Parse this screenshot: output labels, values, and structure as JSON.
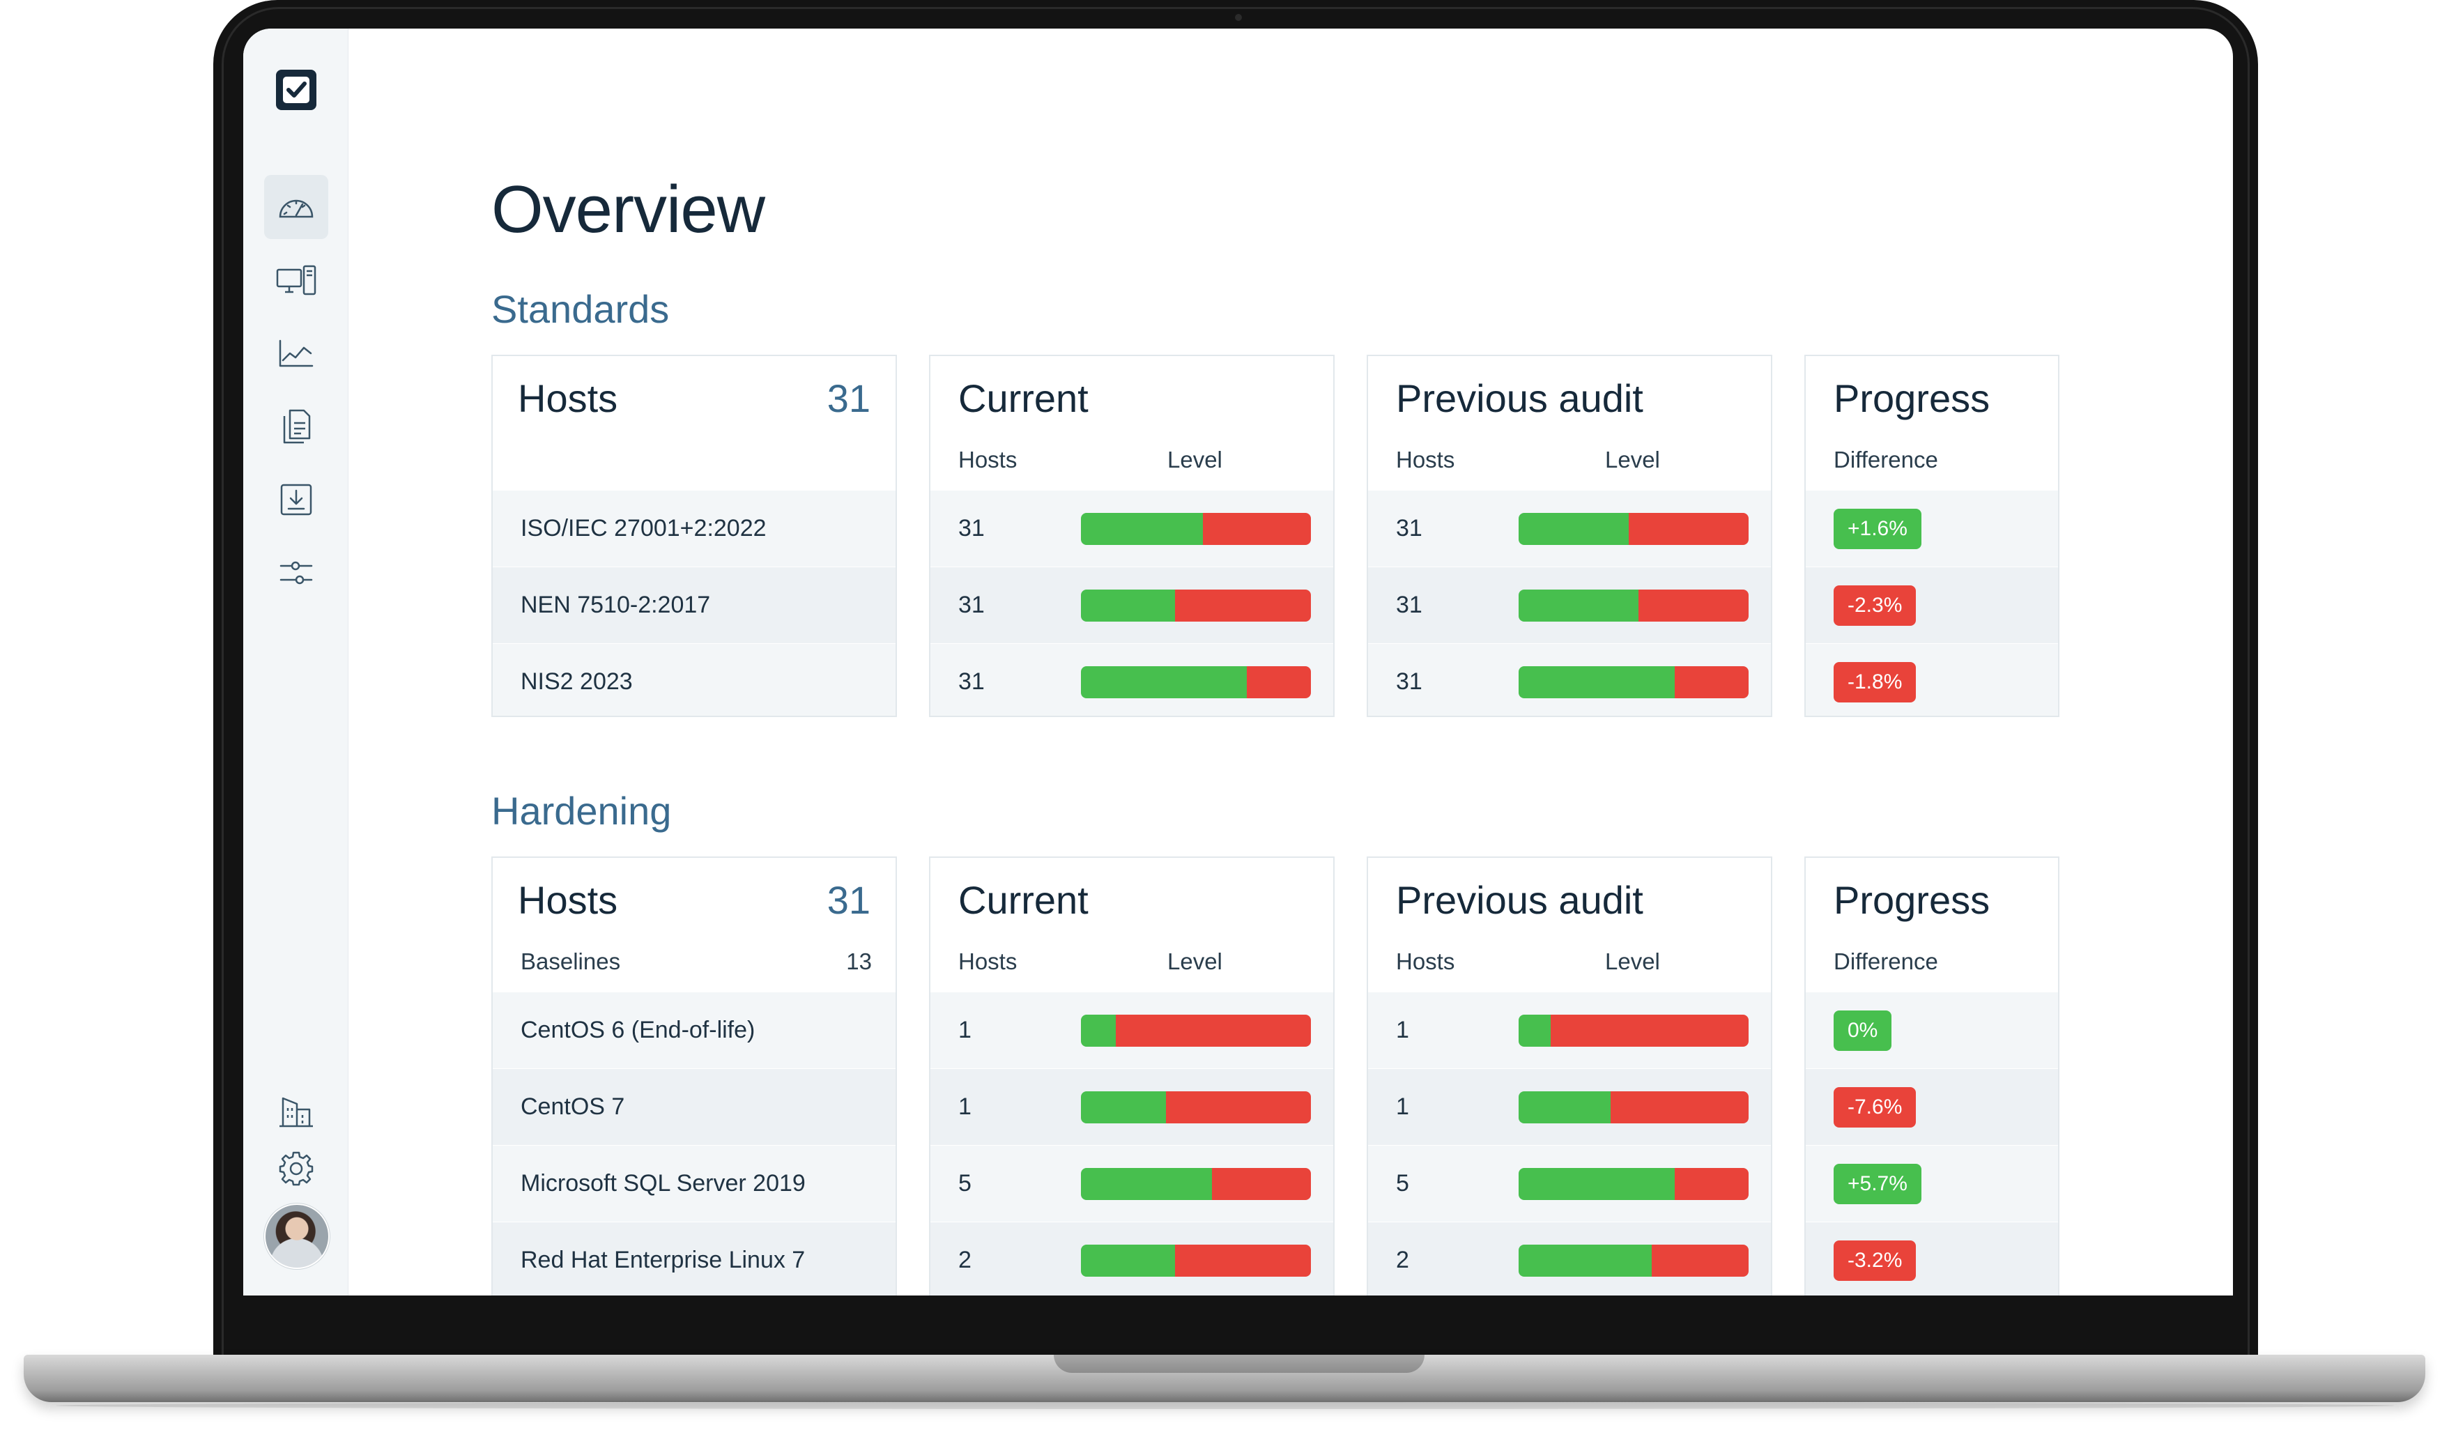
{
  "page_title": "Overview",
  "colors": {
    "green": "#47bf4e",
    "red": "#e9433a",
    "navy": "#16293a",
    "accent": "#3a6a8e"
  },
  "sidebar": {
    "logo_icon": "checkbox-logo-icon",
    "items": [
      {
        "name": "dashboard",
        "icon": "gauge-icon",
        "active": true
      },
      {
        "name": "hosts",
        "icon": "devices-icon"
      },
      {
        "name": "reports",
        "icon": "line-chart-icon"
      },
      {
        "name": "documents",
        "icon": "documents-icon"
      },
      {
        "name": "downloads",
        "icon": "download-icon"
      },
      {
        "name": "filters",
        "icon": "sliders-icon"
      },
      {
        "name": "organization",
        "icon": "buildings-icon"
      },
      {
        "name": "settings",
        "icon": "gear-icon"
      }
    ]
  },
  "standards": {
    "title": "Standards",
    "hosts_card": {
      "title": "Hosts",
      "count": "31"
    },
    "current_card": {
      "title": "Current",
      "col_hosts": "Hosts",
      "col_level": "Level"
    },
    "previous_card": {
      "title": "Previous audit",
      "col_hosts": "Hosts",
      "col_level": "Level"
    },
    "progress_card": {
      "title": "Progress",
      "col_difference": "Difference"
    },
    "rows": [
      {
        "name": "ISO/IEC 27001+2:2022",
        "current_hosts": "31",
        "current_level": 0.53,
        "previous_hosts": "31",
        "previous_level": 0.48,
        "difference": "+1.6%",
        "trend": "pos"
      },
      {
        "name": "NEN 7510-2:2017",
        "current_hosts": "31",
        "current_level": 0.41,
        "previous_hosts": "31",
        "previous_level": 0.52,
        "difference": "-2.3%",
        "trend": "neg"
      },
      {
        "name": "NIS2 2023",
        "current_hosts": "31",
        "current_level": 0.72,
        "previous_hosts": "31",
        "previous_level": 0.68,
        "difference": "-1.8%",
        "trend": "neg"
      }
    ]
  },
  "hardening": {
    "title": "Hardening",
    "hosts_card": {
      "title": "Hosts",
      "count": "31",
      "sub_label": "Baselines",
      "sub_count": "13"
    },
    "current_card": {
      "title": "Current",
      "col_hosts": "Hosts",
      "col_level": "Level"
    },
    "previous_card": {
      "title": "Previous audit",
      "col_hosts": "Hosts",
      "col_level": "Level"
    },
    "progress_card": {
      "title": "Progress",
      "col_difference": "Difference"
    },
    "rows": [
      {
        "name": "CentOS 6 (End-of-life)",
        "current_hosts": "1",
        "current_level": 0.15,
        "previous_hosts": "1",
        "previous_level": 0.14,
        "difference": "0%",
        "trend": "pos"
      },
      {
        "name": "CentOS 7",
        "current_hosts": "1",
        "current_level": 0.37,
        "previous_hosts": "1",
        "previous_level": 0.4,
        "difference": "-7.6%",
        "trend": "neg"
      },
      {
        "name": "Microsoft SQL Server 2019",
        "current_hosts": "5",
        "current_level": 0.57,
        "previous_hosts": "5",
        "previous_level": 0.68,
        "difference": "+5.7%",
        "trend": "pos"
      },
      {
        "name": "Red Hat Enterprise Linux 7",
        "current_hosts": "2",
        "current_level": 0.41,
        "previous_hosts": "2",
        "previous_level": 0.58,
        "difference": "-3.2%",
        "trend": "neg"
      }
    ]
  }
}
